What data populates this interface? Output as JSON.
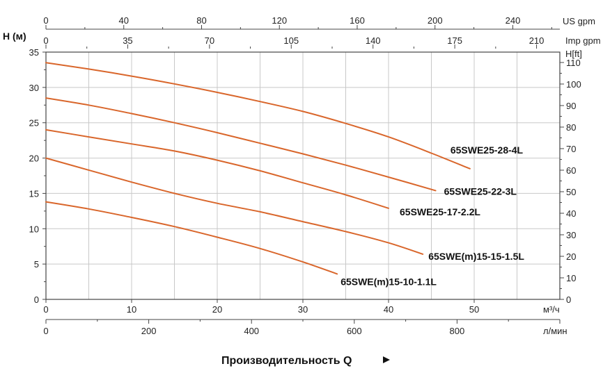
{
  "chart_data": {
    "type": "line",
    "xlabel": "Производительность Q",
    "ylabel": "H (м)",
    "right_ylabel": "H[ft]",
    "xlim": [
      0,
      60
    ],
    "ylim": [
      0,
      35
    ],
    "grid": true,
    "x_unit": "м³/ч",
    "x_ticks": [
      0,
      10,
      20,
      30,
      40,
      50
    ],
    "y_ticks": [
      0,
      5,
      10,
      15,
      20,
      25,
      30,
      35
    ],
    "right_axis": {
      "label": "H[ft]",
      "ticks": [
        0,
        10,
        20,
        30,
        40,
        50,
        60,
        70,
        80,
        90,
        100,
        110
      ]
    },
    "top_axes": [
      {
        "unit": "US gpm",
        "ticks": [
          0,
          40,
          80,
          120,
          160,
          200,
          240
        ]
      },
      {
        "unit": "Imp gpm",
        "ticks": [
          0,
          35,
          70,
          105,
          140,
          175,
          210
        ]
      }
    ],
    "bottom_axis2": {
      "unit": "л/мин",
      "ticks": [
        0,
        200,
        400,
        600,
        800
      ]
    },
    "series_color": "#d9662b",
    "series": [
      {
        "name": "65SWE25-28-4L",
        "x": [
          0,
          5,
          10,
          15,
          20,
          25,
          30,
          35,
          40,
          45,
          49.5
        ],
        "y": [
          33.5,
          32.6,
          31.6,
          30.5,
          29.3,
          28.0,
          26.6,
          24.9,
          23.0,
          20.7,
          18.5
        ]
      },
      {
        "name": "65SWE25-22-3L",
        "x": [
          0,
          5,
          10,
          15,
          20,
          25,
          30,
          35,
          40,
          45.5
        ],
        "y": [
          28.5,
          27.5,
          26.3,
          25.0,
          23.6,
          22.1,
          20.6,
          19.0,
          17.3,
          15.4
        ]
      },
      {
        "name": "65SWE25-17-2.2L",
        "x": [
          0,
          5,
          10,
          15,
          20,
          25,
          30,
          35,
          40
        ],
        "y": [
          24.0,
          23.0,
          22.0,
          21.0,
          19.7,
          18.2,
          16.5,
          14.8,
          12.9
        ]
      },
      {
        "name": "65SWE(m)15-15-1.5L",
        "x": [
          0,
          5,
          10,
          15,
          20,
          25,
          30,
          35,
          40,
          44
        ],
        "y": [
          20.0,
          18.3,
          16.6,
          15.0,
          13.6,
          12.4,
          11.0,
          9.6,
          8.0,
          6.4
        ]
      },
      {
        "name": "65SWE(m)15-10-1.1L",
        "x": [
          0,
          5,
          10,
          15,
          20,
          25,
          30,
          34
        ],
        "y": [
          13.8,
          12.8,
          11.6,
          10.3,
          8.8,
          7.2,
          5.3,
          3.6
        ]
      }
    ]
  }
}
